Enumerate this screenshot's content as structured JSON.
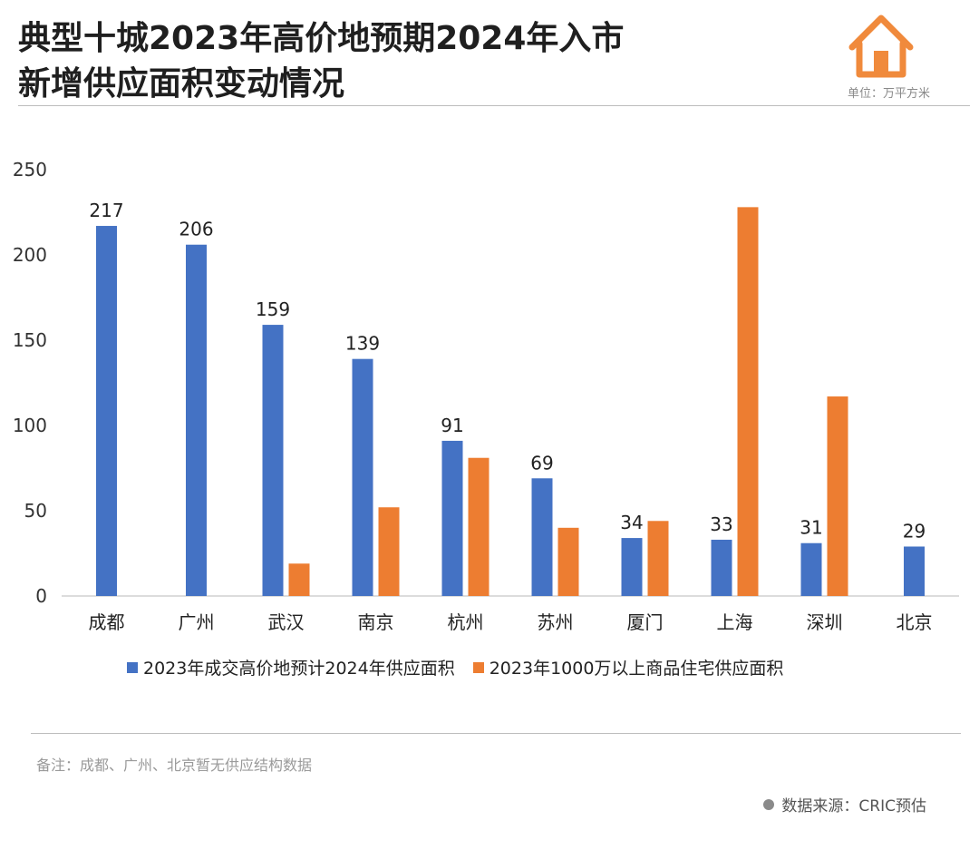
{
  "header": {
    "title_line1": "典型十城2023年高价地预期2024年入市",
    "title_line2": "新增供应面积变动情况",
    "unit": "单位：万平方米",
    "logo_icon": "house-icon",
    "logo_color": "#F08A3C"
  },
  "chart_data": {
    "type": "bar",
    "title": "典型十城2023年高价地预期2024年入市新增供应面积变动情况",
    "ylabel": "万平方米",
    "xlabel": "",
    "ylim": [
      0,
      250
    ],
    "yticks": [
      0,
      50,
      100,
      150,
      200,
      250
    ],
    "categories": [
      "成都",
      "广州",
      "武汉",
      "南京",
      "杭州",
      "苏州",
      "厦门",
      "上海",
      "深圳",
      "北京"
    ],
    "series": [
      {
        "name": "2023年成交高价地预计2024年供应面积",
        "color": "#4472C4",
        "values": [
          217,
          206,
          159,
          139,
          91,
          69,
          34,
          33,
          31,
          29
        ],
        "labels": [
          "217",
          "206",
          "159",
          "139",
          "91",
          "69",
          "34",
          "33",
          "31",
          "29"
        ]
      },
      {
        "name": "2023年1000万以上商品住宅供应面积",
        "color": "#ED7D31",
        "values": [
          null,
          null,
          19,
          52,
          81,
          40,
          44,
          228,
          117,
          null
        ]
      }
    ],
    "legend_position": "bottom",
    "grid": false
  },
  "footer": {
    "note": "备注：成都、广州、北京暂无供应结构数据",
    "source": "数据来源：CRIC预估"
  }
}
